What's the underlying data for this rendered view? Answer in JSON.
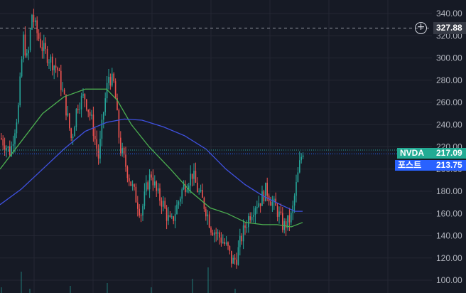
{
  "chart": {
    "y_axis_ticks": [
      "340.00",
      "320.00",
      "300.00",
      "280.00",
      "260.00",
      "240.00",
      "220.00",
      "200.00",
      "180.00",
      "160.00",
      "140.00",
      "120.00",
      "100.00"
    ],
    "crosshair_price": "327.88",
    "plus_icon": "plus-circle-icon",
    "symbol_tag": {
      "name": "NVDA",
      "value": "217.09",
      "name_color": "#22ab94",
      "value_color": "#22ab94"
    },
    "post_tag": {
      "name": "포스트",
      "value": "213.75",
      "color": "#2962ff"
    },
    "colors": {
      "background": "#161a25",
      "grid": "#242733",
      "up_candle": "#26a69a",
      "down_candle": "#ef5350",
      "ma_fast": "#4caf50",
      "ma_slow": "#3f51e0"
    }
  }
}
